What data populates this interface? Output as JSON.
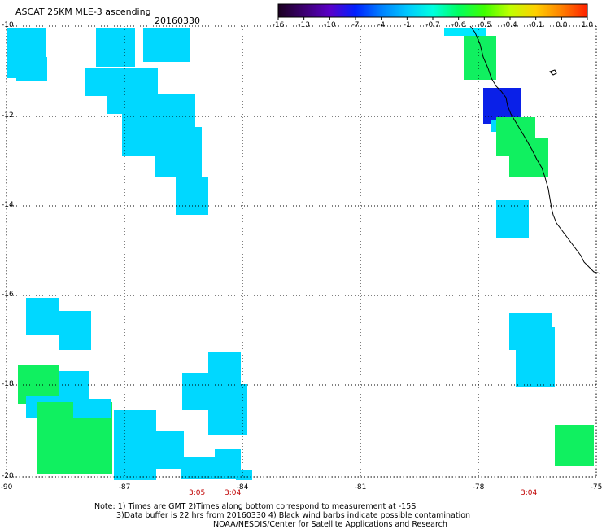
{
  "title": "ASCAT 25KM MLE-3 ascending",
  "date": "20160330",
  "colorbar": {
    "ticks": [
      "-16",
      "-13",
      "-10",
      "-7",
      "-4",
      "-1",
      "-0.7",
      "-0.6",
      "-0.5",
      "-0.4",
      "-0.1",
      "0.0",
      "1.0"
    ],
    "colors": [
      "#1a0020",
      "#3c0070",
      "#5a00c8",
      "#0020ff",
      "#0080ff",
      "#00c8ff",
      "#00ffe0",
      "#00ff60",
      "#40ff00",
      "#c0ff00",
      "#ffd000",
      "#ff8000",
      "#ff2000"
    ]
  },
  "map": {
    "lat_labels": [
      "-10",
      "-12",
      "-14",
      "-16",
      "-18",
      "-20"
    ],
    "lon_labels": [
      "-90",
      "-87",
      "-84",
      "-81",
      "-78",
      "-75"
    ],
    "time_labels": [
      "3:05",
      "3:04",
      "3:04"
    ]
  },
  "notes": [
    "Note: 1) Times are GMT 2)Times along bottom correspond to measurement at -15S",
    "3)Data buffer is 22 hrs from 20160330 4) Black wind barbs indicate possible contamination",
    "NOAA/NESDIS/Center for Satellite Applications and Research"
  ],
  "colors": {
    "cyan_main": "#00d8ff",
    "cyan_light": "#00e8ff",
    "blue": "#0a20e8",
    "green": "#10f060",
    "green_bright": "#20ff40"
  }
}
